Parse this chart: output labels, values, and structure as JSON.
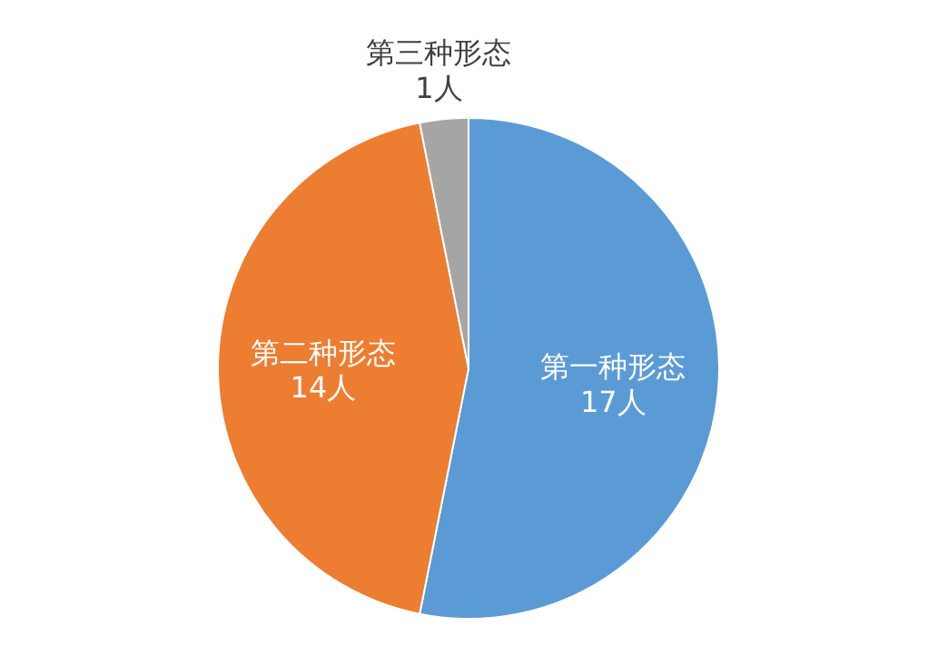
{
  "chart_data": {
    "type": "pie",
    "categories": [
      "第一种形态",
      "第二种形态",
      "第三种形态"
    ],
    "values": [
      17,
      14,
      1
    ],
    "value_labels": [
      "17人",
      "14人",
      "1人"
    ],
    "colors": [
      "#5b9bd5",
      "#ed7d31",
      "#a5a5a5"
    ],
    "legend": false
  }
}
